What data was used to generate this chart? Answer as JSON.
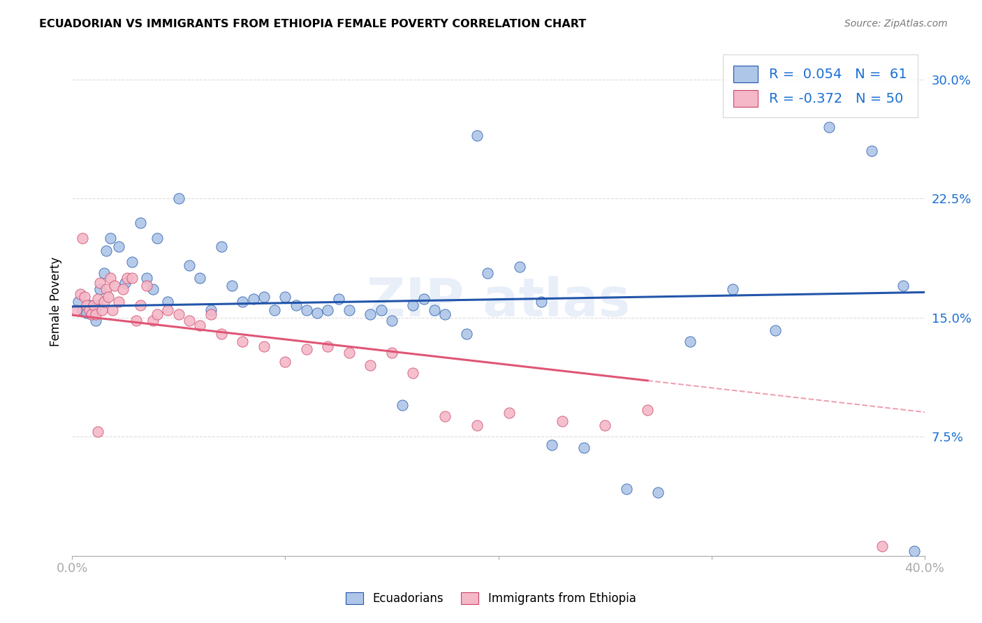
{
  "title": "ECUADORIAN VS IMMIGRANTS FROM ETHIOPIA FEMALE POVERTY CORRELATION CHART",
  "source": "Source: ZipAtlas.com",
  "ylabel": "Female Poverty",
  "yticks": [
    0.0,
    0.075,
    0.15,
    0.225,
    0.3
  ],
  "ytick_labels": [
    "",
    "7.5%",
    "15.0%",
    "22.5%",
    "30.0%"
  ],
  "xlim": [
    0.0,
    0.4
  ],
  "ylim": [
    0.0,
    0.32
  ],
  "R_blue": 0.054,
  "N_blue": 61,
  "R_pink": -0.372,
  "N_pink": 50,
  "legend_label_blue": "Ecuadorians",
  "legend_label_pink": "Immigrants from Ethiopia",
  "blue_color": "#aec6e8",
  "pink_color": "#f4b8c8",
  "line_blue_color": "#2255aa",
  "line_pink_color": "#e05575",
  "background_color": "#ffffff",
  "grid_color": "#dddddd",
  "blue_x": [
    0.003,
    0.005,
    0.007,
    0.008,
    0.009,
    0.01,
    0.011,
    0.012,
    0.013,
    0.015,
    0.016,
    0.018,
    0.022,
    0.025,
    0.028,
    0.032,
    0.035,
    0.038,
    0.04,
    0.045,
    0.05,
    0.055,
    0.06,
    0.065,
    0.07,
    0.075,
    0.08,
    0.085,
    0.09,
    0.095,
    0.1,
    0.105,
    0.11,
    0.115,
    0.12,
    0.125,
    0.13,
    0.14,
    0.15,
    0.155,
    0.16,
    0.165,
    0.17,
    0.175,
    0.185,
    0.195,
    0.21,
    0.225,
    0.24,
    0.26,
    0.275,
    0.31,
    0.33,
    0.355,
    0.375,
    0.39,
    0.395,
    0.22,
    0.29,
    0.19,
    0.145
  ],
  "blue_y": [
    0.16,
    0.155,
    0.153,
    0.158,
    0.152,
    0.155,
    0.148,
    0.158,
    0.168,
    0.178,
    0.192,
    0.2,
    0.195,
    0.172,
    0.185,
    0.21,
    0.175,
    0.168,
    0.2,
    0.16,
    0.225,
    0.183,
    0.175,
    0.155,
    0.195,
    0.17,
    0.16,
    0.162,
    0.163,
    0.155,
    0.163,
    0.158,
    0.155,
    0.153,
    0.155,
    0.162,
    0.155,
    0.152,
    0.148,
    0.095,
    0.158,
    0.162,
    0.155,
    0.152,
    0.14,
    0.178,
    0.182,
    0.07,
    0.068,
    0.042,
    0.04,
    0.168,
    0.142,
    0.27,
    0.255,
    0.17,
    0.003,
    0.16,
    0.135,
    0.265,
    0.155
  ],
  "pink_x": [
    0.002,
    0.004,
    0.005,
    0.006,
    0.007,
    0.008,
    0.009,
    0.01,
    0.011,
    0.012,
    0.013,
    0.014,
    0.015,
    0.016,
    0.017,
    0.018,
    0.019,
    0.02,
    0.022,
    0.024,
    0.026,
    0.028,
    0.03,
    0.032,
    0.035,
    0.038,
    0.04,
    0.045,
    0.05,
    0.055,
    0.06,
    0.065,
    0.07,
    0.08,
    0.09,
    0.1,
    0.11,
    0.12,
    0.13,
    0.14,
    0.15,
    0.16,
    0.175,
    0.19,
    0.205,
    0.23,
    0.25,
    0.27,
    0.38,
    0.012
  ],
  "pink_y": [
    0.155,
    0.165,
    0.2,
    0.163,
    0.158,
    0.155,
    0.152,
    0.158,
    0.152,
    0.162,
    0.172,
    0.155,
    0.16,
    0.168,
    0.163,
    0.175,
    0.155,
    0.17,
    0.16,
    0.168,
    0.175,
    0.175,
    0.148,
    0.158,
    0.17,
    0.148,
    0.152,
    0.155,
    0.152,
    0.148,
    0.145,
    0.152,
    0.14,
    0.135,
    0.132,
    0.122,
    0.13,
    0.132,
    0.128,
    0.12,
    0.128,
    0.115,
    0.088,
    0.082,
    0.09,
    0.085,
    0.082,
    0.092,
    0.006,
    0.078
  ]
}
